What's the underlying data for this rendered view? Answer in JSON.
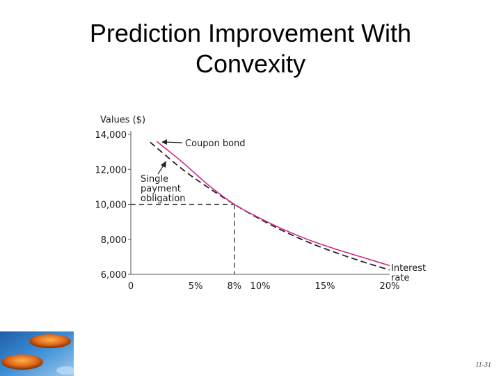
{
  "slide": {
    "title_line1": "Prediction Improvement With",
    "title_line2": "Convexity",
    "slide_number": "11-31"
  },
  "colors": {
    "coupon_bond": "#cc2a8c",
    "single_payment": "#222222",
    "axis": "#555555",
    "guide": "#333333"
  },
  "chart_data": {
    "type": "line",
    "title": "",
    "ylabel": "Values ($)",
    "xlabel": "Interest rate",
    "xlabel_lines": [
      "Interest",
      "rate"
    ],
    "xlim": [
      0,
      20
    ],
    "ylim": [
      6000,
      14000
    ],
    "x_ticks": [
      0,
      5,
      8,
      10,
      15,
      20
    ],
    "x_tick_labels": [
      "0",
      "5%",
      "8%",
      "10%",
      "15%",
      "20%"
    ],
    "y_ticks": [
      6000,
      8000,
      10000,
      12000,
      14000
    ],
    "y_tick_labels": [
      "6,000",
      "8,000",
      "10,000",
      "12,000",
      "14,000"
    ],
    "series": [
      {
        "name": "Coupon bond",
        "style": "solid",
        "x": [
          2,
          4,
          6,
          8,
          10,
          12,
          14,
          16,
          18,
          20
        ],
        "y": [
          13600,
          12400,
          11100,
          10000,
          9200,
          8500,
          7900,
          7400,
          6950,
          6500
        ]
      },
      {
        "name": "Single payment obligation",
        "name_lines": [
          "Single",
          "payment",
          "obligation"
        ],
        "style": "dashed",
        "x": [
          1.5,
          4,
          6,
          8,
          10,
          12,
          14,
          16,
          18,
          20
        ],
        "y": [
          13550,
          12000,
          10950,
          10000,
          9150,
          8400,
          7750,
          7200,
          6700,
          6250
        ]
      }
    ],
    "reference_point": {
      "x": 8,
      "y": 10000
    },
    "grid": false
  }
}
